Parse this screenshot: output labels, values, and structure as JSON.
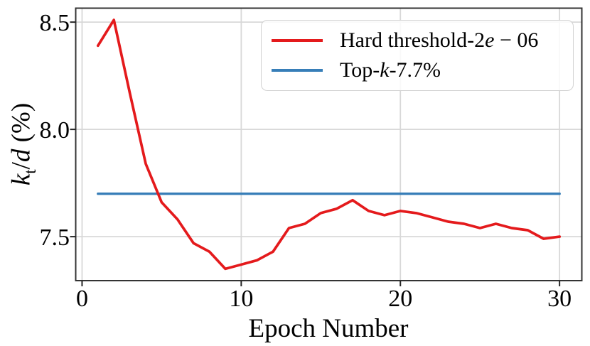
{
  "figure": {
    "background": "#ffffff"
  },
  "chart_data": {
    "type": "line",
    "title": "",
    "xlabel": "Epoch Number",
    "ylabel": "k_t/d (%)",
    "ylabel_parts": {
      "var1": "k",
      "sub": "t",
      "slash": "/",
      "var2": "d",
      "unit": " (%)"
    },
    "xlim": [
      -0.4,
      31.4
    ],
    "ylim": [
      7.295,
      8.565
    ],
    "xticks": [
      0,
      10,
      20,
      30
    ],
    "xticklabels": [
      "0",
      "10",
      "20",
      "30"
    ],
    "yticks": [
      7.5,
      8.0,
      8.5
    ],
    "yticklabels": [
      "7.5",
      "8.0",
      "8.5"
    ],
    "grid": true,
    "grid_color": "#d8d8d8",
    "axis_color": "#333333",
    "tick_color": "#262626",
    "legend_position": "upper right",
    "series": [
      {
        "name": "Hard threshold-2e − 06",
        "color": "#e41a1c",
        "line_width": 3.7,
        "x": [
          1,
          2,
          3,
          4,
          5,
          6,
          7,
          8,
          9,
          10,
          11,
          12,
          13,
          14,
          15,
          16,
          17,
          18,
          19,
          20,
          21,
          22,
          23,
          24,
          25,
          26,
          27,
          28,
          29,
          30
        ],
        "y": [
          8.39,
          8.51,
          8.17,
          7.84,
          7.66,
          7.58,
          7.47,
          7.43,
          7.35,
          7.37,
          7.39,
          7.43,
          7.54,
          7.56,
          7.61,
          7.63,
          7.67,
          7.62,
          7.6,
          7.62,
          7.61,
          7.59,
          7.57,
          7.56,
          7.54,
          7.56,
          7.54,
          7.53,
          7.49,
          7.5
        ]
      },
      {
        "name": "Top-k-7.7%",
        "color": "#377eb8",
        "line_width": 3.4,
        "x": [
          1,
          30
        ],
        "y": [
          7.7,
          7.7
        ]
      }
    ]
  },
  "legend": {
    "entries": [
      {
        "pre": "Hard threshold-2",
        "it": "e",
        "post": " − 06"
      },
      {
        "pre": "Top-",
        "it": "k",
        "post": "-7.7%"
      }
    ]
  }
}
